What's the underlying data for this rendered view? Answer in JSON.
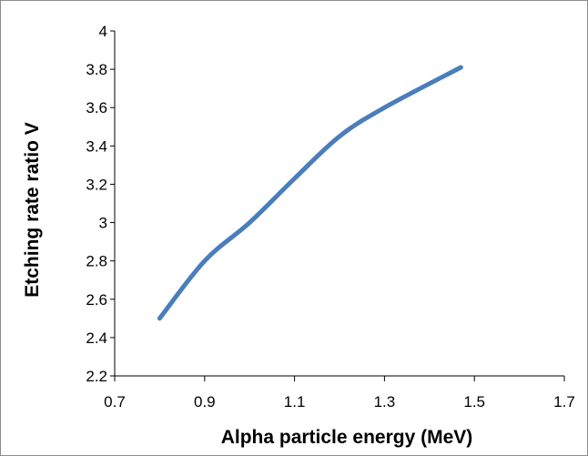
{
  "chart_data": {
    "type": "line",
    "title": "",
    "xlabel": "Alpha particle energy (MeV)",
    "ylabel": "Etching rate ratio V",
    "xlim": [
      0.7,
      1.7
    ],
    "ylim": [
      2.2,
      4.0
    ],
    "xticks": [
      "0.7",
      "0.9",
      "1.1",
      "1.3",
      "1.5",
      "1.7"
    ],
    "yticks": [
      "2.2",
      "2.4",
      "2.6",
      "2.8",
      "3",
      "3.2",
      "3.4",
      "3.6",
      "3.8",
      "4"
    ],
    "grid": false,
    "legend": "none",
    "series": [
      {
        "color": "#4a7ebb",
        "x": [
          0.8,
          0.9,
          1.0,
          1.1,
          1.2,
          1.3,
          1.47
        ],
        "y": [
          2.5,
          2.8,
          3.0,
          3.23,
          3.45,
          3.6,
          3.81
        ]
      }
    ]
  }
}
